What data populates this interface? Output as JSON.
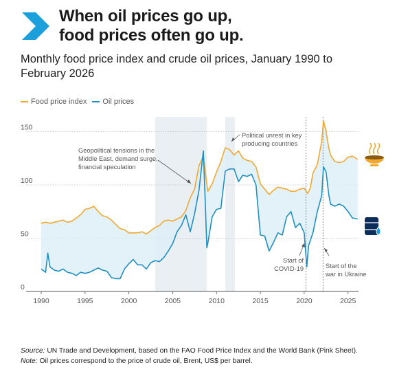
{
  "header": {
    "title_line1": "When oil prices go up,",
    "title_line2": "food prices often go up.",
    "subtitle": "Monthly food price index and crude oil prices, January 1990 to February 2026",
    "accent_color": "#1ba0dc"
  },
  "footer": {
    "source_label": "Source:",
    "source_text": " UN Trade and Development, based on the FAO Food Price Index and the World Bank (Pink Sheet).",
    "note_label": "Note:",
    "note_text": " Oil prices correspond to the price of crude oil, Brent, US$ per barrel."
  },
  "icons": {
    "food": "food-bowl-icon",
    "oil": "oil-barrel-icon"
  },
  "chart_data": {
    "type": "line",
    "xlim": [
      1990,
      2026.2
    ],
    "ylim": [
      0,
      160
    ],
    "x_ticks": [
      1990,
      1995,
      2000,
      2005,
      2010,
      2015,
      2020,
      2025
    ],
    "y_ticks": [
      0,
      50,
      100,
      150
    ],
    "grid": "horizontal dotted",
    "legend_position": "top-left",
    "shaded_periods": [
      [
        2003.0,
        2008.9
      ],
      [
        2011.0,
        2012.1
      ]
    ],
    "event_lines": [
      2020.2,
      2022.15
    ],
    "annotations": [
      {
        "text": [
          "Geopolitical tensions in the",
          "Middle East, demand surge,",
          "financial speculation"
        ]
      },
      {
        "text": [
          "Political unrest in key",
          "producing countries"
        ]
      },
      {
        "text": [
          "Start of",
          "COVID-19"
        ]
      },
      {
        "text": [
          "Start of the",
          "war in Ukraine"
        ]
      }
    ],
    "series": [
      {
        "name": "Food price index",
        "color": "#f0a830",
        "x": [
          1990,
          1990.5,
          1991,
          1991.5,
          1992,
          1992.5,
          1993,
          1993.5,
          1994,
          1994.5,
          1995,
          1995.5,
          1996,
          1996.5,
          1997,
          1997.5,
          1998,
          1998.5,
          1999,
          1999.5,
          2000,
          2000.5,
          2001,
          2001.5,
          2002,
          2002.5,
          2003,
          2003.5,
          2004,
          2004.5,
          2005,
          2005.5,
          2006,
          2006.5,
          2007,
          2007.5,
          2008,
          2008.5,
          2009,
          2009.5,
          2010,
          2010.5,
          2011,
          2011.5,
          2012,
          2012.5,
          2013,
          2013.5,
          2014,
          2014.5,
          2015,
          2015.5,
          2016,
          2016.5,
          2017,
          2017.5,
          2018,
          2018.5,
          2019,
          2019.5,
          2020,
          2020.4,
          2020.7,
          2021,
          2021.5,
          2022,
          2022.2,
          2022.5,
          2022.8,
          2023,
          2023.5,
          2024,
          2024.5,
          2025,
          2025.5,
          2026.1
        ],
        "values": [
          64,
          65,
          64,
          65,
          66,
          67,
          65,
          66,
          69,
          72,
          77,
          78,
          80,
          75,
          71,
          70,
          67,
          63,
          59,
          58,
          55,
          55,
          55,
          56,
          54,
          57,
          60,
          62,
          66,
          67,
          66,
          68,
          70,
          76,
          88,
          96,
          118,
          127,
          94,
          101,
          112,
          122,
          135,
          133,
          128,
          132,
          125,
          123,
          122,
          117,
          101,
          96,
          91,
          95,
          98,
          97,
          96,
          94,
          94,
          96,
          97,
          92,
          97,
          111,
          119,
          141,
          160,
          150,
          135,
          128,
          122,
          121,
          122,
          126,
          127,
          124
        ]
      },
      {
        "name": "Oil prices",
        "color": "#1e8fc0",
        "x": [
          1990,
          1990.5,
          1990.75,
          1991,
          1991.5,
          1992,
          1992.5,
          1993,
          1993.5,
          1994,
          1994.5,
          1995,
          1995.5,
          1996,
          1996.5,
          1997,
          1997.5,
          1998,
          1998.5,
          1999,
          1999.5,
          2000,
          2000.5,
          2001,
          2001.5,
          2002,
          2002.5,
          2003,
          2003.5,
          2004,
          2004.5,
          2005,
          2005.5,
          2006,
          2006.5,
          2007,
          2007.5,
          2008,
          2008.5,
          2008.9,
          2009,
          2009.5,
          2010,
          2010.5,
          2011,
          2011.5,
          2012,
          2012.5,
          2013,
          2013.5,
          2014,
          2014.5,
          2015,
          2015.5,
          2016,
          2016.5,
          2017,
          2017.5,
          2018,
          2018.5,
          2019,
          2019.5,
          2020,
          2020.3,
          2020.5,
          2021,
          2021.5,
          2022,
          2022.2,
          2022.5,
          2022.8,
          2023,
          2023.5,
          2024,
          2024.5,
          2025,
          2025.5,
          2026.1
        ],
        "values": [
          21,
          18,
          36,
          23,
          20,
          19,
          21,
          18,
          17,
          15,
          18,
          17,
          18,
          20,
          22,
          20,
          19,
          13,
          12,
          12,
          21,
          26,
          30,
          25,
          25,
          21,
          27,
          29,
          28,
          32,
          38,
          45,
          56,
          62,
          72,
          56,
          73,
          95,
          132,
          41,
          45,
          70,
          77,
          78,
          113,
          115,
          115,
          103,
          109,
          108,
          110,
          100,
          53,
          52,
          38,
          46,
          55,
          53,
          70,
          75,
          60,
          64,
          55,
          23,
          43,
          55,
          75,
          90,
          117,
          112,
          91,
          82,
          80,
          82,
          80,
          75,
          69,
          68
        ]
      }
    ]
  }
}
